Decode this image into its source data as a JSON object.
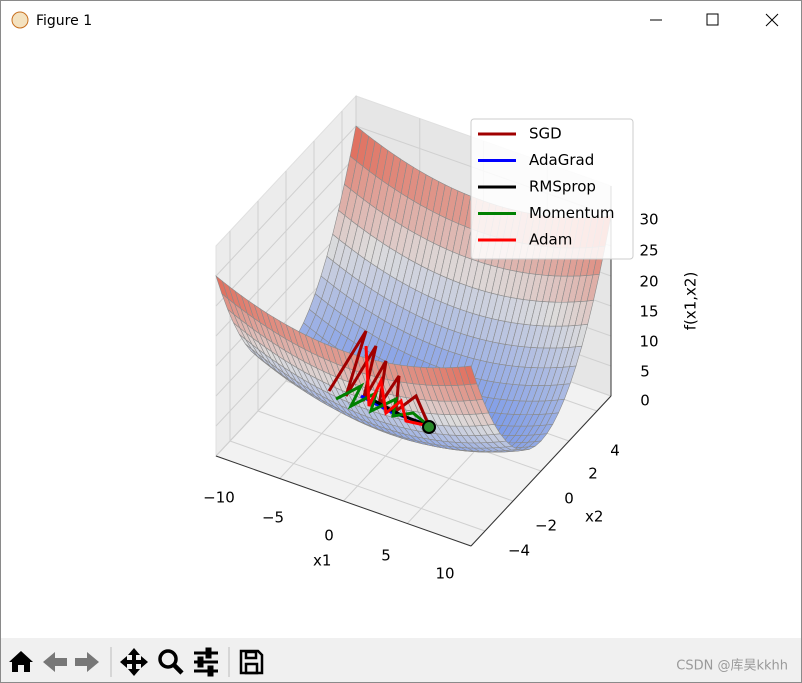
{
  "window": {
    "title": "Figure 1"
  },
  "plot": {
    "x_label": "x1",
    "y_label": "x2",
    "z_label": "f(x1,x2)",
    "x_ticks": [
      "−10",
      "−5",
      "0",
      "5",
      "10"
    ],
    "y_ticks": [
      "−4",
      "−2",
      "0",
      "2",
      "4"
    ],
    "z_ticks": [
      "0",
      "5",
      "10",
      "15",
      "20",
      "25",
      "30"
    ],
    "legend": [
      {
        "name": "SGD",
        "color": "#a00000"
      },
      {
        "name": "AdaGrad",
        "color": "#0000ff"
      },
      {
        "name": "RMSprop",
        "color": "#000000"
      },
      {
        "name": "Momentum",
        "color": "#008000"
      },
      {
        "name": "Adam",
        "color": "#ff0000"
      }
    ]
  },
  "watermark": "CSDN @库昊kkhh"
}
